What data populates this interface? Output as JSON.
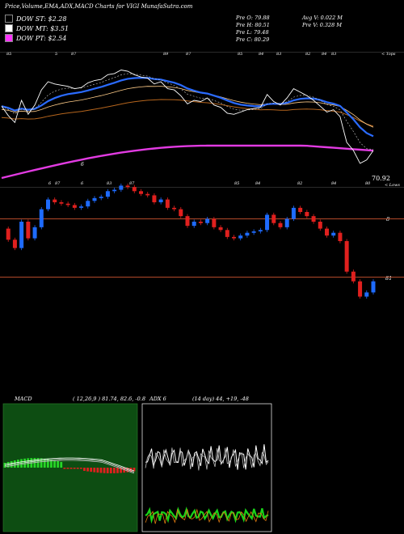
{
  "header": {
    "title": "Price,Volume,EMA,ADX,MACD Charts for VIGI MunafaSutra.com",
    "prev_o": "Pre   O: 79.88",
    "prev_h": "Pre   H: 80.51",
    "prev_l": "Pre   L: 79.48",
    "prev_c": "Pre   C: 80.29",
    "avg_v": "Avg V: 0.022  M",
    "pre_v": "Pre   V: 0.328  M"
  },
  "legend": [
    {
      "label": "DOW ST: $2.28",
      "color": "#000000"
    },
    {
      "label": "DOW MT: $3.51",
      "color": "#ffffff"
    },
    {
      "label": "DOW PT: $2.54",
      "color": "#ff33ff"
    }
  ],
  "price_panel": {
    "last_price": "70.92",
    "top_label": "< Tops",
    "low_label": "< Lows",
    "top_marks": [
      "85",
      "5",
      "87",
      "89",
      "87",
      "85",
      "84",
      "83",
      "82",
      "84",
      "83"
    ],
    "low_marks": [
      "6",
      "6",
      "87",
      "83",
      "87",
      "85",
      "84",
      "82",
      "84",
      "80"
    ],
    "mid_mark": "6"
  },
  "candle_panel": {
    "label_8": "8",
    "label_81": "81"
  },
  "macd": {
    "title": "MACD",
    "params": "( 12,26,9 ) 81.74,  82.6,  -0.8"
  },
  "adx": {
    "title": "ADX   6",
    "params": "(14  day) 44,  +19,  -48"
  },
  "colors": {
    "up": "#1e6bff",
    "down": "#e0201e",
    "ema_blue": "#2a6bff",
    "ema_brown": "#b5651d",
    "ema_magenta": "#e23be2",
    "macd_bg": "#0d4d12",
    "adx_green": "#19d219",
    "adx_orange": "#e07a10"
  },
  "chart_data": {
    "type": "candlestick",
    "price_series": {
      "close": [
        84.1,
        83.3,
        82.7,
        84.6,
        83.4,
        84.2,
        85.5,
        86.2,
        86.0,
        85.9,
        85.8,
        85.6,
        85.7,
        86.1,
        86.3,
        86.4,
        86.8,
        86.9,
        87.2,
        87.1,
        86.8,
        86.6,
        86.5,
        86.0,
        86.2,
        85.6,
        85.5,
        85.0,
        84.3,
        84.6,
        84.5,
        84.8,
        84.2,
        84.0,
        83.5,
        83.4,
        83.6,
        83.8,
        83.9,
        84.0,
        85.1,
        84.5,
        84.2,
        84.8,
        85.6,
        85.3,
        85.0,
        84.6,
        84.1,
        83.6,
        83.8,
        83.2,
        81.0,
        80.3,
        79.2,
        79.5,
        80.3
      ],
      "last": 70.92
    },
    "macd_value": 81.74,
    "macd_signal": 82.6,
    "macd_hist": -0.8,
    "adx": 44,
    "plus_di": 19,
    "minus_di": 48
  }
}
